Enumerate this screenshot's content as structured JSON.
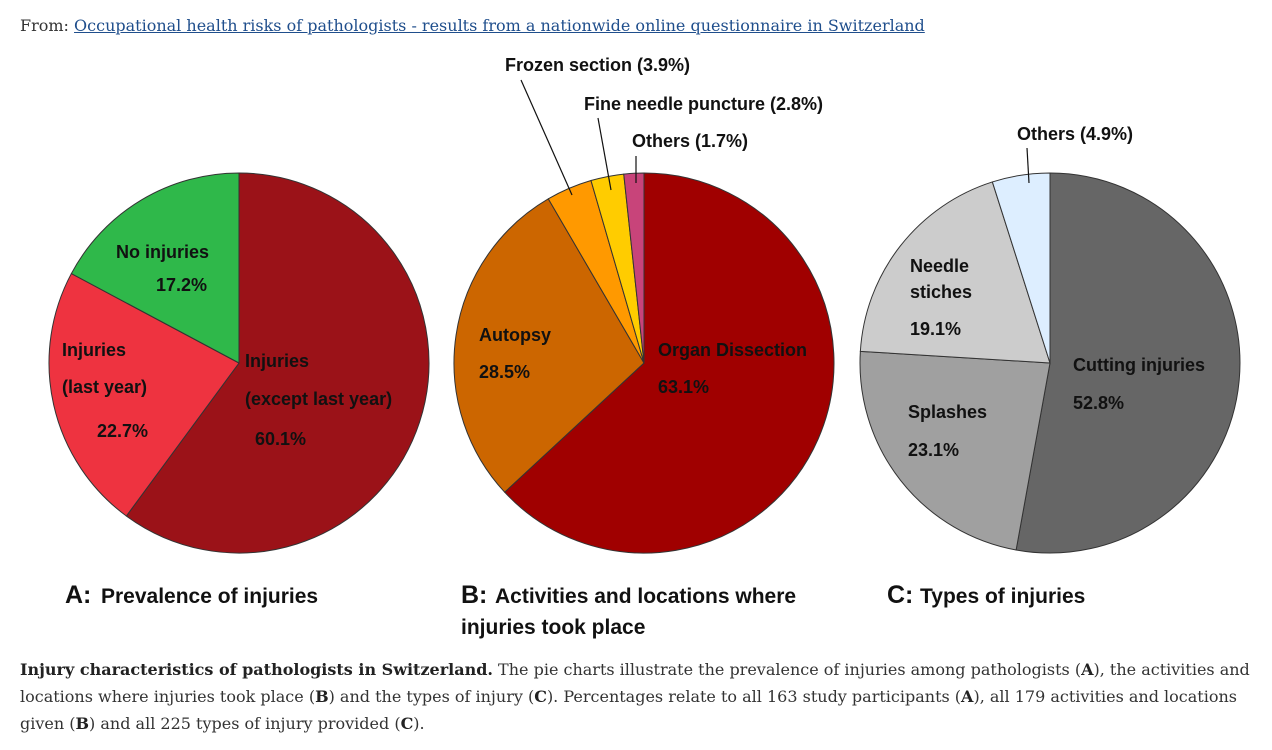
{
  "header": {
    "from_label": "From: ",
    "article_link": "Occupational health risks of pathologists - results from a nationwide online questionnaire in Switzerland"
  },
  "caption": {
    "title": "Injury characteristics of pathologists in Switzerland.",
    "p1": " The pie charts illustrate the prevalence of injuries among pathologists (",
    "A1": "A",
    "p2": "), the activities and locations where injuries took place (",
    "B1": "B",
    "p3": ") and the types of injury (",
    "C1": "C",
    "p4": "). Percentages relate to all 163 study participants (",
    "A2": "A",
    "p5": "), all 179 activities and locations given (",
    "B2": "B",
    "p6": ") and all 225 types of injury provided (",
    "C2": "C",
    "p7": ")."
  },
  "chart_data": [
    {
      "type": "pie",
      "panel_letter": "A:",
      "title_lines": [
        "Prevalence of injuries"
      ],
      "slices": [
        {
          "label_lines": [
            "Injuries",
            "(except last year)"
          ],
          "percent_label": "60.1%",
          "value": 60.1,
          "color": "#9b1218"
        },
        {
          "label_lines": [
            "Injuries",
            "(last year)"
          ],
          "percent_label": "22.7%",
          "value": 22.7,
          "color": "#ee3340"
        },
        {
          "label_lines": [
            "No injuries"
          ],
          "percent_label": "17.2%",
          "value": 17.2,
          "color": "#2fb84a"
        }
      ]
    },
    {
      "type": "pie",
      "panel_letter": "B:",
      "title_lines": [
        "Activities and locations where",
        "injuries took place"
      ],
      "slices": [
        {
          "label_lines": [
            "Organ Dissection"
          ],
          "percent_label": "63.1%",
          "value": 63.1,
          "color": "#a00000"
        },
        {
          "label_lines": [
            "Autopsy"
          ],
          "percent_label": "28.5%",
          "value": 28.5,
          "color": "#cc6600"
        },
        {
          "label_lines": [
            "Frozen section (3.9%)"
          ],
          "percent_label": "",
          "value": 3.9,
          "color": "#ff9900"
        },
        {
          "label_lines": [
            "Fine needle puncture (2.8%)"
          ],
          "percent_label": "",
          "value": 2.8,
          "color": "#ffcc00"
        },
        {
          "label_lines": [
            "Others (1.7%)"
          ],
          "percent_label": "",
          "value": 1.7,
          "color": "#c8447a"
        }
      ]
    },
    {
      "type": "pie",
      "panel_letter": "C:",
      "title_lines": [
        "Types of injuries"
      ],
      "slices": [
        {
          "label_lines": [
            "Cutting injuries"
          ],
          "percent_label": "52.8%",
          "value": 52.8,
          "color": "#666666"
        },
        {
          "label_lines": [
            "Splashes"
          ],
          "percent_label": "23.1%",
          "value": 23.1,
          "color": "#a0a0a0"
        },
        {
          "label_lines": [
            "Needle",
            "stiches"
          ],
          "percent_label": "19.1%",
          "value": 19.1,
          "color": "#cccccc"
        },
        {
          "label_lines": [
            "Others (4.9%)"
          ],
          "percent_label": "",
          "value": 4.9,
          "color": "#ddeeff"
        }
      ]
    }
  ]
}
